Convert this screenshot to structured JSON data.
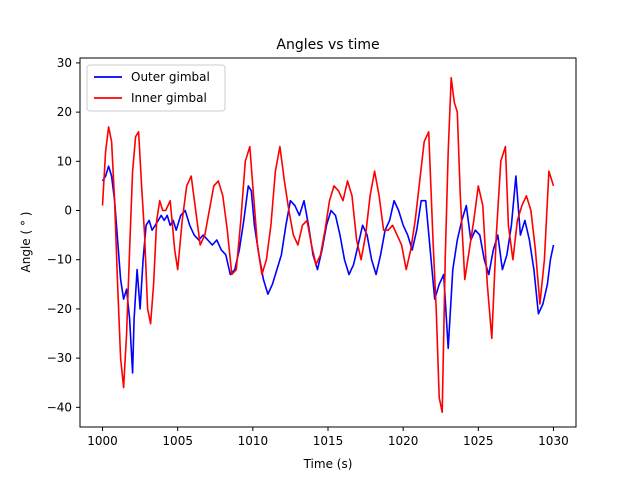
{
  "chart_data": {
    "type": "line",
    "title": "Angles vs time",
    "xlabel": "Time (s)",
    "ylabel": "Angle ( ° )",
    "xlim": [
      998.5,
      1031.5
    ],
    "ylim": [
      -44,
      31
    ],
    "xticks": [
      1000,
      1005,
      1010,
      1015,
      1020,
      1025,
      1030
    ],
    "xtick_labels": [
      "1000",
      "1005",
      "1010",
      "1015",
      "1020",
      "1025",
      "1030"
    ],
    "yticks": [
      30,
      20,
      10,
      0,
      -10,
      -20,
      -30,
      -40
    ],
    "ytick_labels": [
      "30",
      "20",
      "10",
      "0",
      "−10",
      "−20",
      "−30",
      "−40"
    ],
    "grid": false,
    "legend": "top-left",
    "series": [
      {
        "name": "Outer gimbal",
        "color": "#0000ff",
        "x": [
          1000.0,
          1000.2,
          1000.4,
          1000.6,
          1000.8,
          1001.0,
          1001.2,
          1001.4,
          1001.6,
          1001.8,
          1002.0,
          1002.1,
          1002.3,
          1002.5,
          1002.7,
          1002.9,
          1003.1,
          1003.3,
          1003.5,
          1003.7,
          1003.9,
          1004.1,
          1004.3,
          1004.5,
          1004.7,
          1004.9,
          1005.2,
          1005.5,
          1005.8,
          1006.1,
          1006.4,
          1006.7,
          1007.0,
          1007.3,
          1007.6,
          1007.9,
          1008.2,
          1008.5,
          1008.8,
          1009.1,
          1009.4,
          1009.7,
          1009.9,
          1010.1,
          1010.4,
          1010.7,
          1011.0,
          1011.3,
          1011.6,
          1011.9,
          1012.2,
          1012.5,
          1012.8,
          1013.1,
          1013.4,
          1013.7,
          1014.0,
          1014.3,
          1014.6,
          1014.9,
          1015.2,
          1015.5,
          1015.8,
          1016.1,
          1016.4,
          1016.7,
          1017.0,
          1017.3,
          1017.6,
          1017.9,
          1018.2,
          1018.5,
          1018.8,
          1019.1,
          1019.4,
          1019.7,
          1020.0,
          1020.3,
          1020.6,
          1020.9,
          1021.2,
          1021.5,
          1021.8,
          1022.1,
          1022.4,
          1022.7,
          1023.0,
          1023.3,
          1023.6,
          1023.9,
          1024.2,
          1024.5,
          1024.8,
          1025.1,
          1025.4,
          1025.7,
          1026.0,
          1026.3,
          1026.6,
          1026.9,
          1027.2,
          1027.5,
          1027.8,
          1028.1,
          1028.4,
          1028.7,
          1029.0,
          1029.3,
          1029.6,
          1029.8,
          1030.0
        ],
        "y": [
          6,
          7,
          9,
          7,
          2,
          -6,
          -14,
          -18,
          -16,
          -22,
          -33,
          -22,
          -12,
          -20,
          -10,
          -3,
          -2,
          -4,
          -3,
          -2,
          -1,
          -2,
          -1,
          -3,
          -2,
          -4,
          -1,
          0,
          -3,
          -5,
          -6,
          -5,
          -6,
          -7,
          -6,
          -8,
          -9,
          -13,
          -12,
          -8,
          -2,
          5,
          4,
          -3,
          -9,
          -14,
          -17,
          -15,
          -12,
          -9,
          -3,
          2,
          1,
          -1,
          2,
          -3,
          -9,
          -12,
          -8,
          -3,
          0,
          -1,
          -5,
          -10,
          -13,
          -11,
          -7,
          -3,
          -5,
          -10,
          -13,
          -9,
          -4,
          -2,
          2,
          0,
          -3,
          -5,
          -8,
          -4,
          2,
          2,
          -8,
          -18,
          -15,
          -13,
          -28,
          -12,
          -6,
          -2,
          1,
          -6,
          -4,
          -5,
          -10,
          -13,
          -8,
          -5,
          -12,
          -9,
          -3,
          7,
          -5,
          -2,
          -6,
          -12,
          -21,
          -19,
          -15,
          -10,
          -7
        ]
      },
      {
        "name": "Inner gimbal",
        "color": "#ff0000",
        "x": [
          1000.0,
          1000.2,
          1000.4,
          1000.6,
          1000.8,
          1001.0,
          1001.2,
          1001.4,
          1001.6,
          1001.8,
          1002.0,
          1002.2,
          1002.4,
          1002.6,
          1002.8,
          1003.0,
          1003.2,
          1003.4,
          1003.6,
          1003.8,
          1004.0,
          1004.2,
          1004.5,
          1004.8,
          1005.0,
          1005.3,
          1005.6,
          1005.9,
          1006.2,
          1006.5,
          1006.8,
          1007.1,
          1007.4,
          1007.7,
          1008.0,
          1008.3,
          1008.6,
          1008.9,
          1009.2,
          1009.5,
          1009.8,
          1010.0,
          1010.3,
          1010.6,
          1010.9,
          1011.2,
          1011.5,
          1011.8,
          1012.1,
          1012.4,
          1012.7,
          1013.0,
          1013.3,
          1013.6,
          1013.9,
          1014.2,
          1014.5,
          1014.8,
          1015.1,
          1015.4,
          1015.7,
          1016.0,
          1016.3,
          1016.6,
          1016.9,
          1017.2,
          1017.5,
          1017.8,
          1018.1,
          1018.4,
          1018.7,
          1019.0,
          1019.3,
          1019.6,
          1019.9,
          1020.2,
          1020.5,
          1020.8,
          1021.1,
          1021.4,
          1021.7,
          1022.0,
          1022.2,
          1022.4,
          1022.6,
          1022.8,
          1023.0,
          1023.2,
          1023.4,
          1023.6,
          1023.8,
          1024.1,
          1024.4,
          1024.7,
          1025.0,
          1025.3,
          1025.6,
          1025.9,
          1026.2,
          1026.5,
          1026.8,
          1027.0,
          1027.3,
          1027.6,
          1027.9,
          1028.2,
          1028.5,
          1028.8,
          1029.1,
          1029.4,
          1029.7,
          1030.0
        ],
        "y": [
          1,
          12,
          17,
          14,
          2,
          -15,
          -30,
          -36,
          -25,
          -8,
          8,
          15,
          16,
          5,
          -5,
          -20,
          -23,
          -15,
          -2,
          2,
          0,
          0,
          2,
          -8,
          -12,
          -2,
          5,
          7,
          0,
          -7,
          -5,
          0,
          5,
          6,
          3,
          -4,
          -13,
          -12,
          -2,
          10,
          13,
          5,
          -7,
          -13,
          -10,
          -3,
          8,
          13,
          6,
          0,
          -5,
          -7,
          -3,
          -2,
          -7,
          -11,
          -9,
          -4,
          2,
          5,
          4,
          2,
          6,
          3,
          -6,
          -10,
          -5,
          3,
          8,
          3,
          -4,
          -4,
          -3,
          -5,
          -7,
          -12,
          -8,
          -2,
          6,
          14,
          16,
          -7,
          -20,
          -38,
          -41,
          -10,
          12,
          27,
          22,
          20,
          3,
          -14,
          -8,
          -2,
          5,
          1,
          -15,
          -26,
          -5,
          10,
          13,
          -3,
          -10,
          -2,
          1,
          3,
          0,
          -8,
          -19,
          -10,
          8,
          5
        ]
      }
    ]
  }
}
